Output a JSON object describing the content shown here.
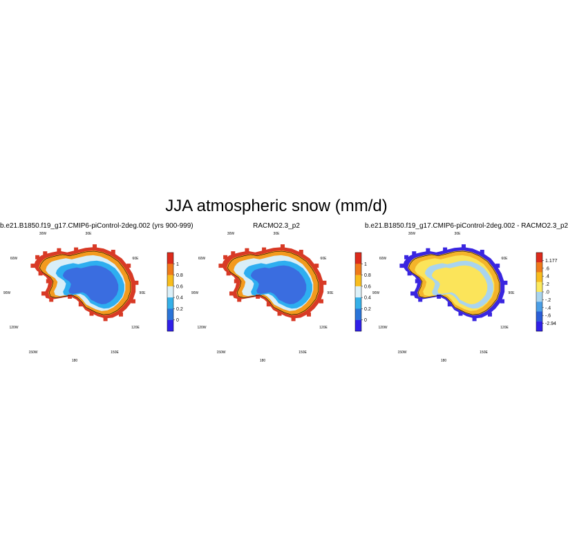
{
  "title": "JJA atmospheric snow (mm/d)",
  "chart_data": [
    {
      "type": "heatmap",
      "title": "b.e21.B1850.f19_g17.CMIP6-piControl-2deg.002 (yrs 900-999)",
      "projection": "south-polar-stereographic",
      "longitude_labels": [
        "30W",
        "30E",
        "60W",
        "60E",
        "90W",
        "90E",
        "120W",
        "120E",
        "150W",
        "150E",
        "180"
      ],
      "colorbar": {
        "tick_labels": [
          "1",
          "0.8",
          "0.6",
          "0.4",
          "0.2",
          "0"
        ],
        "colors": [
          "#dc2b1c",
          "#ef7a1a",
          "#f8bd1e",
          "#dcf0f8",
          "#35b0e8",
          "#2a74d8",
          "#3020e8"
        ]
      },
      "regions": [
        {
          "name": "interior",
          "value": "<0.2",
          "color": "#3a6de0"
        },
        {
          "name": "inner-ring",
          "value": "0.2-0.4",
          "color": "#2eaef0"
        },
        {
          "name": "middle-ring",
          "value": "0.4-0.6",
          "color": "#d8eef8"
        },
        {
          "name": "coastal-ring",
          "value": "0.8-1",
          "color": "#f39a1e"
        },
        {
          "name": "coast",
          "value": ">1",
          "color": "#d83a26"
        }
      ]
    },
    {
      "type": "heatmap",
      "title": "RACMO2.3_p2",
      "projection": "south-polar-stereographic",
      "longitude_labels": [
        "30W",
        "30E",
        "60W",
        "60E",
        "90W",
        "90E",
        "120W",
        "120E",
        "150W",
        "150E",
        "180"
      ],
      "colorbar": {
        "tick_labels": [
          "1",
          "0.8",
          "0.6",
          "0.4",
          "0.2",
          "0"
        ],
        "colors": [
          "#dc2b1c",
          "#ef7a1a",
          "#f8bd1e",
          "#dcf0f8",
          "#35b0e8",
          "#2a74d8",
          "#3020e8"
        ]
      },
      "regions": [
        {
          "name": "interior",
          "value": "<0.2",
          "color": "#3a6de0"
        },
        {
          "name": "inner-ring",
          "value": "0.2-0.4",
          "color": "#2eaef0"
        },
        {
          "name": "middle-ring",
          "value": "0.4-0.6",
          "color": "#d8eef8"
        },
        {
          "name": "coastal-ring",
          "value": "0.8-1",
          "color": "#f39a1e"
        },
        {
          "name": "coast",
          "value": ">1",
          "color": "#d83a26"
        }
      ]
    },
    {
      "type": "heatmap",
      "title": "b.e21.B1850.f19_g17.CMIP6-piControl-2deg.002 - RACMO2.3_p2",
      "projection": "south-polar-stereographic",
      "longitude_labels": [
        "30W",
        "30E",
        "60W",
        "60E",
        "90W",
        "90E",
        "120W",
        "120E",
        "150W",
        "150E",
        "180"
      ],
      "colorbar": {
        "tick_labels": [
          "1.177",
          ".6",
          ".4",
          ".2",
          ".0",
          "-.2",
          "-.4",
          "-.6",
          "-2.94"
        ],
        "colors": [
          "#dc2b1c",
          "#ef7a1a",
          "#f8bd1e",
          "#fbe95e",
          "#a9d4ee",
          "#4a9ee6",
          "#2a5ed8",
          "#3020e8"
        ]
      },
      "regions": [
        {
          "name": "interior",
          "value": "0-0.2",
          "color": "#fbe45a"
        },
        {
          "name": "inner-ring",
          "value": "0 to -0.2",
          "color": "#a9d4ee"
        },
        {
          "name": "middle-ring",
          "value": "0-0.2",
          "color": "#fbe45a"
        },
        {
          "name": "coastal-ring",
          "value": "0.2-0.4",
          "color": "#f4b42a"
        },
        {
          "name": "coast",
          "value": "<-0.6",
          "color": "#3a26e0"
        }
      ]
    }
  ]
}
